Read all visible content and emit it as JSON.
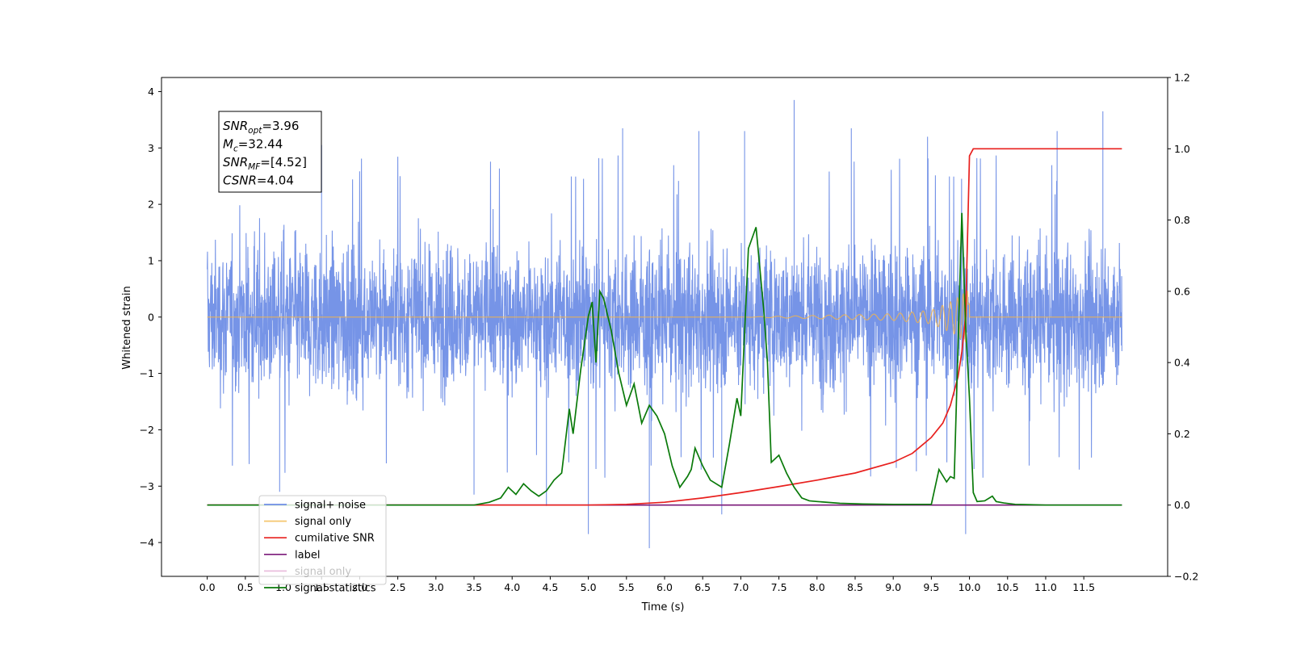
{
  "chart_data": {
    "type": "line",
    "xlabel": "Time (s)",
    "ylabel": "Whitened strain",
    "y2label": "",
    "xlim": [
      -0.6,
      12.6
    ],
    "ylim": [
      -4.6,
      4.25
    ],
    "y2lim": [
      -0.2,
      1.2
    ],
    "xticks": [
      0.0,
      0.5,
      1.0,
      1.5,
      2.0,
      2.5,
      3.0,
      3.5,
      4.0,
      4.5,
      5.0,
      5.5,
      6.0,
      6.5,
      7.0,
      7.5,
      8.0,
      8.5,
      9.0,
      9.5,
      10.0,
      10.5,
      11.0,
      11.5
    ],
    "xtick_labels": [
      "0.0",
      "0.5",
      "1.0",
      "1.5",
      "2.0",
      "2.5",
      "3.0",
      "3.5",
      "4.0",
      "4.5",
      "5.0",
      "5.5",
      "6.0",
      "6.5",
      "7.0",
      "7.5",
      "8.0",
      "8.5",
      "9.0",
      "9.5",
      "10.0",
      "10.5",
      "11.0",
      "11.5"
    ],
    "yticks": [
      -4,
      -3,
      -2,
      -1,
      0,
      1,
      2,
      3,
      4
    ],
    "ytick_labels": [
      "−4",
      "−3",
      "−2",
      "−1",
      "0",
      "1",
      "2",
      "3",
      "4"
    ],
    "y2ticks": [
      -0.2,
      0.0,
      0.2,
      0.4,
      0.6,
      0.8,
      1.0,
      1.2
    ],
    "y2tick_labels": [
      "−0.2",
      "0.0",
      "0.2",
      "0.4",
      "0.6",
      "0.8",
      "1.0",
      "1.2"
    ],
    "grid": false,
    "legend_position": "lower-left",
    "series": [
      {
        "name": "signal+ noise",
        "color": "#6f8ee6",
        "axis": "left",
        "description_visible": "dense noisy strain trace, amplitude roughly between -2.5 and 2.5 with spikes up to 3.8 and down to -4.1",
        "x_range": [
          0.0,
          12.0
        ],
        "spikes": [
          [
            0.95,
            -3.1
          ],
          [
            1.5,
            3.05
          ],
          [
            3.5,
            -3.15
          ],
          [
            4.45,
            -3.35
          ],
          [
            5.0,
            -3.85
          ],
          [
            5.45,
            3.35
          ],
          [
            5.8,
            -4.1
          ],
          [
            6.45,
            3.3
          ],
          [
            6.75,
            -3.5
          ],
          [
            7.05,
            3.3
          ],
          [
            7.7,
            3.85
          ],
          [
            8.45,
            3.35
          ],
          [
            9.45,
            3.2
          ],
          [
            9.95,
            -3.85
          ],
          [
            11.15,
            3.3
          ],
          [
            11.75,
            3.65
          ]
        ]
      },
      {
        "name": "signal only",
        "color": "#f5b54a",
        "axis": "left",
        "envelope": {
          "x": [
            0.0,
            7.0,
            8.0,
            9.0,
            9.5,
            9.8,
            9.95,
            10.0
          ],
          "amp": [
            0.0,
            0.0,
            0.03,
            0.06,
            0.12,
            0.3,
            0.45,
            0.5
          ]
        },
        "x_range": [
          0.0,
          12.0
        ]
      },
      {
        "name": "cumilative SNR",
        "color": "#e8201e",
        "axis": "right",
        "x": [
          0.0,
          4.0,
          5.0,
          5.5,
          6.0,
          6.5,
          7.0,
          7.5,
          8.0,
          8.5,
          9.0,
          9.25,
          9.5,
          9.65,
          9.75,
          9.85,
          9.9,
          9.95,
          10.0,
          10.05,
          12.0
        ],
        "values": [
          0.0,
          0.0,
          0.0,
          0.002,
          0.008,
          0.02,
          0.035,
          0.052,
          0.07,
          0.09,
          0.12,
          0.145,
          0.19,
          0.23,
          0.28,
          0.36,
          0.43,
          0.53,
          0.98,
          1.0,
          1.0
        ]
      },
      {
        "name": "label",
        "color": "#7b1a7a",
        "axis": "right",
        "x": [
          0.0,
          12.0
        ],
        "values": [
          0.0,
          0.0
        ]
      },
      {
        "name": "signal only",
        "color": "#e9bedd",
        "axis": "right",
        "x": [
          0.0,
          12.0
        ],
        "values": [
          0.0,
          0.0
        ]
      },
      {
        "name": "signal statistics",
        "color": "#0a7a0a",
        "axis": "right",
        "x": [
          0.0,
          3.5,
          3.7,
          3.85,
          3.95,
          4.05,
          4.15,
          4.25,
          4.35,
          4.45,
          4.55,
          4.65,
          4.75,
          4.8,
          4.9,
          5.0,
          5.05,
          5.1,
          5.15,
          5.2,
          5.3,
          5.4,
          5.5,
          5.6,
          5.7,
          5.8,
          5.9,
          6.0,
          6.1,
          6.2,
          6.3,
          6.35,
          6.4,
          6.5,
          6.6,
          6.75,
          6.85,
          6.95,
          7.0,
          7.1,
          7.2,
          7.3,
          7.35,
          7.4,
          7.5,
          7.6,
          7.7,
          7.8,
          7.9,
          8.0,
          8.3,
          8.6,
          9.0,
          9.5,
          9.6,
          9.7,
          9.75,
          9.8,
          9.9,
          9.95,
          10.0,
          10.05,
          10.1,
          10.2,
          10.3,
          10.35,
          10.45,
          10.6,
          10.8,
          11.0,
          11.2,
          12.0
        ],
        "values": [
          0.0,
          0.0,
          0.008,
          0.02,
          0.05,
          0.03,
          0.06,
          0.04,
          0.025,
          0.04,
          0.07,
          0.09,
          0.27,
          0.2,
          0.38,
          0.53,
          0.57,
          0.4,
          0.6,
          0.58,
          0.49,
          0.37,
          0.28,
          0.34,
          0.23,
          0.28,
          0.25,
          0.2,
          0.11,
          0.05,
          0.08,
          0.1,
          0.16,
          0.11,
          0.07,
          0.05,
          0.17,
          0.3,
          0.25,
          0.72,
          0.78,
          0.55,
          0.4,
          0.12,
          0.14,
          0.09,
          0.05,
          0.02,
          0.012,
          0.01,
          0.005,
          0.003,
          0.002,
          0.002,
          0.1,
          0.065,
          0.08,
          0.075,
          0.82,
          0.5,
          0.3,
          0.035,
          0.01,
          0.012,
          0.025,
          0.01,
          0.006,
          0.002,
          0.001,
          0.0,
          0.0,
          0.0
        ]
      }
    ],
    "annotations": [
      {
        "main": "SNR",
        "sub": "opt",
        "rest": "=3.96"
      },
      {
        "main": "M",
        "sub": "c",
        "rest": "=32.44"
      },
      {
        "main": "SNR",
        "sub": "MF",
        "rest": "=[4.52]"
      },
      {
        "main": "CSNR",
        "sub": "",
        "rest": "=4.04"
      }
    ],
    "legend_entries": [
      "signal+ noise",
      "signal only",
      "cumilative SNR",
      "label",
      "signal only",
      "signal statistics"
    ],
    "legend_colors": [
      "#6f8ee6",
      "#f5c66e",
      "#e8201e",
      "#7b1a7a",
      "#e9bedd",
      "#0a7a0a"
    ]
  }
}
